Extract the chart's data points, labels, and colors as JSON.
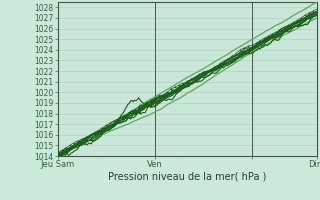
{
  "xlabel": "Pression niveau de la mer( hPa )",
  "ylim": [
    1014,
    1028.5
  ],
  "xlim": [
    0,
    96
  ],
  "yticks": [
    1014,
    1015,
    1016,
    1017,
    1018,
    1019,
    1020,
    1021,
    1022,
    1023,
    1024,
    1025,
    1026,
    1027,
    1028
  ],
  "xtick_positions": [
    0,
    36,
    72,
    96
  ],
  "xtick_labels": [
    "Jeu Sam",
    "Ven",
    "",
    "Dim"
  ],
  "background_color": "#cce8dc",
  "grid_color_major": "#aaccbb",
  "grid_color_minor": "#bbddcc",
  "line_color_dark": "#1a5c1a",
  "line_color_light": "#5aaa5a",
  "n_points": 193,
  "x_start": 0,
  "x_end": 96
}
